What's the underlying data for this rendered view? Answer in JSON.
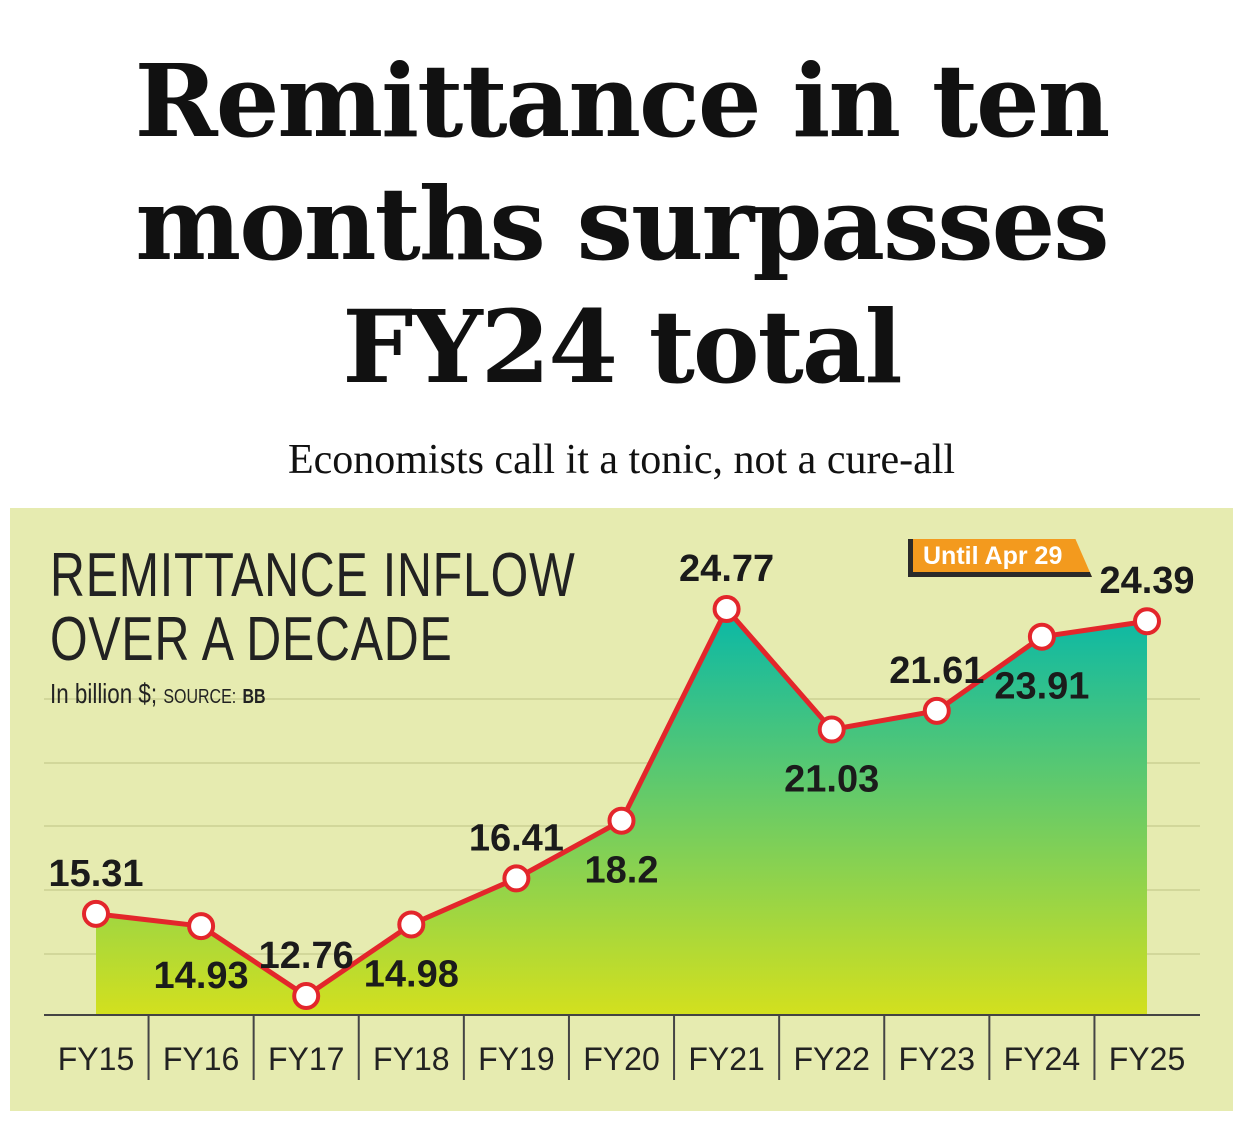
{
  "headline": {
    "line1": "Remittance in ten",
    "line2": "months surpasses",
    "line3": "FY24 total"
  },
  "deck": "Economists call it a tonic, not a cure-all",
  "chart": {
    "title_line1": "REMITTANCE INFLOW",
    "title_line2": "OVER A DECADE",
    "subtitle_unit": "In billion $;",
    "subtitle_source_label": "SOURCE:",
    "subtitle_source": "BB",
    "note_tag": "Until Apr 29"
  },
  "colors": {
    "panel_bg": "#e6ebb0",
    "line": "#e3262b",
    "fill_top": "#08b8a8",
    "fill_bottom": "#d3e01e",
    "tag": "#f39a1e"
  },
  "chart_data": {
    "type": "area",
    "title": "REMITTANCE INFLOW OVER A DECADE",
    "ylabel": "In billion $",
    "categories": [
      "FY15",
      "FY16",
      "FY17",
      "FY18",
      "FY19",
      "FY20",
      "FY21",
      "FY22",
      "FY23",
      "FY24",
      "FY25"
    ],
    "values": [
      15.31,
      14.93,
      12.76,
      14.98,
      16.41,
      18.2,
      24.77,
      21.03,
      21.61,
      23.91,
      24.39
    ],
    "labels": [
      "15.31",
      "14.93",
      "12.76",
      "14.98",
      "16.41",
      "18.2",
      "24.77",
      "21.03",
      "21.61",
      "23.91",
      "24.39"
    ],
    "label_positions": [
      "above",
      "below",
      "above",
      "below",
      "above",
      "below",
      "above",
      "below",
      "above",
      "below",
      "above"
    ],
    "ylim": [
      12.17,
      26.88
    ],
    "grid": true
  }
}
